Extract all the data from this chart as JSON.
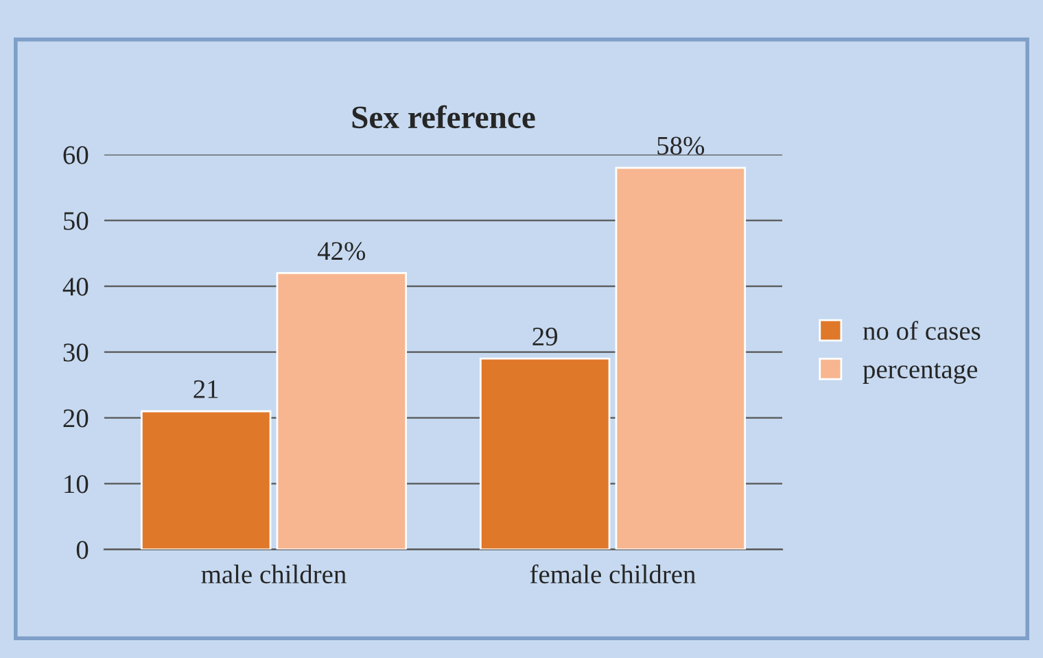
{
  "chart_data": {
    "type": "bar",
    "title": "Sex reference",
    "categories": [
      "male children",
      "female children"
    ],
    "series": [
      {
        "name": "no of cases",
        "color": "#e0782a",
        "values": [
          21,
          29
        ],
        "value_labels": [
          "21",
          "29"
        ]
      },
      {
        "name": "percentage",
        "color": "#f7b690",
        "values": [
          42,
          58
        ],
        "value_labels": [
          "42%",
          "58%"
        ]
      }
    ],
    "ylim": [
      0,
      60
    ],
    "yticks": [
      0,
      10,
      20,
      30,
      40,
      50,
      60
    ],
    "grid": "y",
    "legend": "right"
  }
}
